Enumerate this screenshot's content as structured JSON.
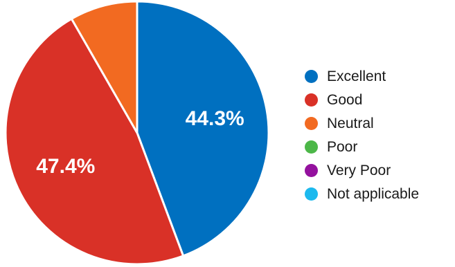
{
  "chart_data": {
    "type": "pie",
    "title": "",
    "start_angle_deg": 0,
    "direction": "clockwise",
    "legend_position": "right",
    "slices": [
      {
        "label": "Excellent",
        "value": 44.3,
        "color": "#0070C0",
        "data_label": "44.3%"
      },
      {
        "label": "Good",
        "value": 47.4,
        "color": "#D93127",
        "data_label": "47.4%"
      },
      {
        "label": "Neutral",
        "value": 8.3,
        "color": "#F26A21",
        "data_label": ""
      },
      {
        "label": "Poor",
        "value": 0,
        "color": "#4CB748",
        "data_label": ""
      },
      {
        "label": "Very Poor",
        "value": 0,
        "color": "#94119E",
        "data_label": ""
      },
      {
        "label": "Not applicable",
        "value": 0,
        "color": "#1CB9EE",
        "data_label": ""
      }
    ]
  }
}
